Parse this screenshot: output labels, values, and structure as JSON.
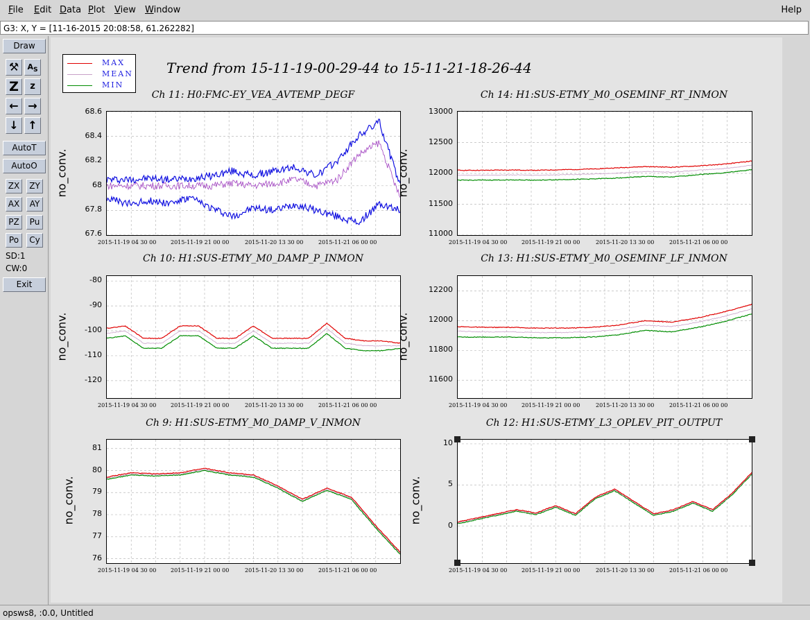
{
  "menubar": {
    "items": [
      {
        "first": "F",
        "rest": "ile"
      },
      {
        "first": "E",
        "rest": "dit"
      },
      {
        "first": "D",
        "rest": "ata"
      },
      {
        "first": "P",
        "rest": "lot"
      },
      {
        "first": "V",
        "rest": "iew"
      },
      {
        "first": "W",
        "rest": "indow"
      }
    ],
    "help": "Help"
  },
  "coord_readout": "G3: X, Y = [11-16-2015 20:08:58, 61.262282]",
  "toolbar": {
    "draw": "Draw",
    "auto_t": "AutoT",
    "auto_o": "AutoO",
    "exit": "Exit",
    "zx": "ZX",
    "zy": "ZY",
    "ax": "AX",
    "ay": "AY",
    "pz": "PZ",
    "pu": "Pu",
    "po": "Po",
    "cy": "Cy",
    "sd": "SD:1",
    "cw": "CW:0"
  },
  "legend": {
    "max": "MAX",
    "mean": "MEAN",
    "min": "MIN",
    "colors": {
      "max": "#e00000",
      "mean": "#c8a0c8",
      "min": "#008c00"
    }
  },
  "title": "Trend from 15-11-19-00-29-44 to 15-11-21-18-26-44",
  "status": "opsws8, :0.0, Untitled",
  "chart_data": [
    {
      "type": "line",
      "title": "Ch 11: H0:FMC-EY_VEA_AVTEMP_DEGF",
      "ylabel": "no_conv.",
      "yticks": [
        "68.6",
        "68.4",
        "68.2",
        "68",
        "67.8",
        "67.6"
      ],
      "ylim": [
        67.6,
        68.6
      ],
      "xticks": [
        "2015-11-19 04 30 00",
        "2015-11-19 21 00 00",
        "2015-11-20 13 30 00",
        "2015-11-21 06 00 00"
      ],
      "series": [
        {
          "name": "MAX",
          "values": [
            68.05,
            68.05,
            68.06,
            68.05,
            68.06,
            68.08,
            68.12,
            68.08,
            68.12,
            68.15,
            68.08,
            68.2,
            68.4,
            68.52,
            68.0
          ]
        },
        {
          "name": "MEAN",
          "values": [
            68.0,
            68.0,
            68.0,
            68.0,
            68.0,
            68.0,
            68.02,
            68.0,
            68.02,
            68.05,
            68.0,
            68.05,
            68.25,
            68.35,
            67.9
          ]
        },
        {
          "name": "MIN",
          "values": [
            67.9,
            67.85,
            67.88,
            67.86,
            67.9,
            67.82,
            67.75,
            67.82,
            67.8,
            67.85,
            67.8,
            67.75,
            67.7,
            67.85,
            67.8
          ]
        }
      ]
    },
    {
      "type": "line",
      "title": "Ch 14: H1:SUS-ETMY_M0_OSEMINF_RT_INMON",
      "ylabel": "no_conv.",
      "yticks": [
        "13000",
        "12500",
        "12000",
        "11500",
        "11000"
      ],
      "ylim": [
        11000,
        13000
      ],
      "xticks": [
        "2015-11-19 04 30 00",
        "2015-11-19 21 00 00",
        "2015-11-20 13 30 00",
        "2015-11-21 06 00 00"
      ],
      "series": [
        {
          "name": "MAX",
          "values": [
            12050,
            12050,
            12055,
            12050,
            12060,
            12070,
            12090,
            12110,
            12100,
            12120,
            12150,
            12200
          ]
        },
        {
          "name": "MEAN",
          "values": [
            11970,
            11970,
            11975,
            11970,
            11980,
            11990,
            12005,
            12030,
            12020,
            12050,
            12080,
            12130
          ]
        },
        {
          "name": "MIN",
          "values": [
            11890,
            11890,
            11895,
            11890,
            11900,
            11910,
            11925,
            11950,
            11940,
            11980,
            12010,
            12060
          ]
        }
      ]
    },
    {
      "type": "line",
      "title": "Ch 10: H1:SUS-ETMY_M0_DAMP_P_INMON",
      "ylabel": "no_conv.",
      "yticks": [
        "-80",
        "-90",
        "-100",
        "-110",
        "-120"
      ],
      "ylim": [
        -127,
        -78
      ],
      "xticks": [
        "2015-11-19 04 30 00",
        "2015-11-19 21 00 00",
        "2015-11-20 13 30 00",
        "2015-11-21 06 00 00"
      ],
      "series": [
        {
          "name": "MAX",
          "values": [
            -99,
            -98,
            -103,
            -103,
            -98,
            -98,
            -103,
            -103,
            -98,
            -103,
            -103,
            -103,
            -97,
            -103,
            -104,
            -104,
            -105
          ]
        },
        {
          "name": "MEAN",
          "values": [
            -101,
            -100,
            -105,
            -105,
            -100,
            -100,
            -105,
            -105,
            -100,
            -105,
            -105,
            -105,
            -99,
            -105,
            -106,
            -106,
            -106
          ]
        },
        {
          "name": "MIN",
          "values": [
            -103,
            -102,
            -107,
            -107,
            -102,
            -102,
            -107,
            -107,
            -102,
            -107,
            -107,
            -107,
            -101,
            -107,
            -108,
            -108,
            -107
          ]
        }
      ]
    },
    {
      "type": "line",
      "title": "Ch 13: H1:SUS-ETMY_M0_OSEMINF_LF_INMON",
      "ylabel": "no_conv.",
      "yticks": [
        "12200",
        "12000",
        "11800",
        "11600"
      ],
      "ylim": [
        11480,
        12300
      ],
      "xticks": [
        "2015-11-19 04 30 00",
        "2015-11-19 21 00 00",
        "2015-11-20 13 30 00",
        "2015-11-21 06 00 00"
      ],
      "series": [
        {
          "name": "MAX",
          "values": [
            11960,
            11955,
            11955,
            11950,
            11950,
            11955,
            11970,
            12000,
            11990,
            12020,
            12060,
            12110
          ]
        },
        {
          "name": "MEAN",
          "values": [
            11930,
            11925,
            11925,
            11920,
            11920,
            11925,
            11940,
            11970,
            11960,
            11990,
            12030,
            12080
          ]
        },
        {
          "name": "MIN",
          "values": [
            11890,
            11890,
            11890,
            11885,
            11885,
            11890,
            11905,
            11935,
            11925,
            11955,
            11995,
            12045
          ]
        }
      ]
    },
    {
      "type": "line",
      "title": "Ch 9: H1:SUS-ETMY_M0_DAMP_V_INMON",
      "ylabel": "no_conv.",
      "yticks": [
        "81",
        "80",
        "79",
        "78",
        "77",
        "76"
      ],
      "ylim": [
        75.8,
        81.4
      ],
      "xticks": [
        "2015-11-19 04 30 00",
        "2015-11-19 21 00 00",
        "2015-11-20 13 30 00",
        "2015-11-21 06 00 00"
      ],
      "series": [
        {
          "name": "MAX",
          "values": [
            79.7,
            79.9,
            79.85,
            79.9,
            80.1,
            79.9,
            79.8,
            79.3,
            78.7,
            79.2,
            78.8,
            77.5,
            76.3
          ]
        },
        {
          "name": "MEAN",
          "values": [
            79.65,
            79.85,
            79.8,
            79.85,
            80.05,
            79.85,
            79.75,
            79.25,
            78.65,
            79.15,
            78.75,
            77.45,
            76.25
          ]
        },
        {
          "name": "MIN",
          "values": [
            79.6,
            79.8,
            79.75,
            79.8,
            80.0,
            79.8,
            79.7,
            79.2,
            78.6,
            79.1,
            78.7,
            77.4,
            76.2
          ]
        }
      ]
    },
    {
      "type": "line",
      "title": "Ch 12: H1:SUS-ETMY_L3_OPLEV_PIT_OUTPUT",
      "ylabel": "no_conv.",
      "yticks": [
        "10",
        "5",
        "0"
      ],
      "ylim": [
        -4.5,
        10.5
      ],
      "xticks": [
        "2015-11-19 04 30 00",
        "2015-11-19 21 00 00",
        "2015-11-20 13 30 00",
        "2015-11-21 06 00 00"
      ],
      "series": [
        {
          "name": "MAX",
          "values": [
            0.5,
            1.0,
            1.5,
            2.0,
            1.6,
            2.5,
            1.5,
            3.5,
            4.5,
            3.0,
            1.5,
            2.0,
            3.0,
            2.0,
            4.0,
            6.5
          ]
        },
        {
          "name": "MEAN",
          "values": [
            0.4,
            0.9,
            1.4,
            1.9,
            1.5,
            2.4,
            1.4,
            3.4,
            4.4,
            2.9,
            1.4,
            1.9,
            2.9,
            1.9,
            3.9,
            6.4
          ]
        },
        {
          "name": "MIN",
          "values": [
            0.3,
            0.8,
            1.3,
            1.8,
            1.4,
            2.3,
            1.3,
            3.3,
            4.3,
            2.8,
            1.3,
            1.8,
            2.8,
            1.8,
            3.8,
            6.3
          ]
        }
      ]
    }
  ]
}
